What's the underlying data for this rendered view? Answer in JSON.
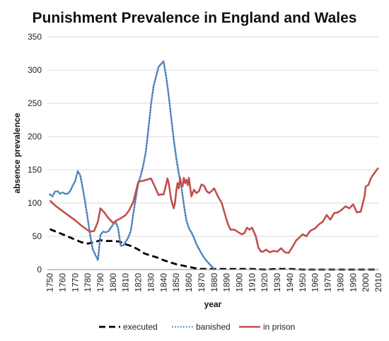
{
  "chart_data": {
    "type": "line",
    "title": "Punishment Prevalence in England and Wales",
    "xlabel": "year",
    "ylabel": "absence prevalence",
    "xlim": [
      1748,
      2010
    ],
    "ylim": [
      0,
      350
    ],
    "yticks": [
      0,
      50,
      100,
      150,
      200,
      250,
      300,
      350
    ],
    "xticks": [
      1750,
      1760,
      1770,
      1780,
      1790,
      1800,
      1810,
      1820,
      1830,
      1840,
      1850,
      1860,
      1870,
      1880,
      1890,
      1900,
      1910,
      1920,
      1930,
      1940,
      1950,
      1960,
      1970,
      1980,
      1990,
      2000,
      2010
    ],
    "grid": "horizontal",
    "legend_position": "bottom",
    "series": [
      {
        "name": "executed",
        "color": "#000000",
        "style": "dashed",
        "x": [
          1750,
          1752,
          1755,
          1760,
          1765,
          1770,
          1775,
          1780,
          1785,
          1790,
          1795,
          1800,
          1805,
          1810,
          1815,
          1820,
          1825,
          1830,
          1835,
          1840,
          1845,
          1850,
          1855,
          1860,
          1865,
          1870,
          1880,
          1890,
          1900,
          1910,
          1920,
          1930,
          1940,
          1950,
          1960,
          1970,
          1980,
          1990,
          2000,
          2010
        ],
        "values": [
          61,
          59,
          57,
          53,
          49,
          45,
          41,
          39,
          41,
          44,
          43,
          43,
          42,
          38,
          35,
          30,
          24,
          21,
          18,
          14,
          11,
          8,
          6,
          4,
          2,
          1,
          1,
          1,
          1,
          1,
          0,
          1,
          1,
          0,
          0,
          0,
          0,
          0,
          0,
          0
        ]
      },
      {
        "name": "banished",
        "color": "#4f81bd",
        "style": "dotted",
        "x": [
          1750,
          1752,
          1754,
          1756,
          1758,
          1760,
          1762,
          1764,
          1766,
          1768,
          1770,
          1772,
          1774,
          1776,
          1778,
          1780,
          1782,
          1784,
          1786,
          1788,
          1790,
          1792,
          1794,
          1796,
          1798,
          1800,
          1802,
          1804,
          1806,
          1808,
          1810,
          1812,
          1814,
          1816,
          1818,
          1820,
          1822,
          1824,
          1826,
          1828,
          1830,
          1832,
          1834,
          1836,
          1838,
          1840,
          1842,
          1844,
          1846,
          1848,
          1850,
          1852,
          1854,
          1856,
          1858,
          1860,
          1862,
          1864,
          1866,
          1868,
          1870,
          1872,
          1874,
          1876,
          1878,
          1880
        ],
        "values": [
          113,
          110,
          117,
          118,
          114,
          116,
          114,
          114,
          118,
          126,
          133,
          148,
          142,
          122,
          100,
          75,
          50,
          30,
          22,
          14,
          52,
          57,
          56,
          57,
          62,
          68,
          72,
          62,
          36,
          36,
          42,
          48,
          58,
          84,
          108,
          130,
          142,
          158,
          178,
          212,
          248,
          275,
          290,
          305,
          309,
          313,
          290,
          262,
          228,
          196,
          168,
          144,
          126,
          98,
          74,
          62,
          56,
          48,
          38,
          31,
          24,
          18,
          13,
          9,
          5,
          0
        ],
        "end_year": 1880
      },
      {
        "name": "in prison",
        "color": "#c0504d",
        "style": "solid",
        "x": [
          1750,
          1752,
          1755,
          1760,
          1765,
          1770,
          1775,
          1780,
          1782,
          1785,
          1788,
          1790,
          1793,
          1796,
          1800,
          1803,
          1806,
          1810,
          1813,
          1816,
          1820,
          1825,
          1830,
          1833,
          1836,
          1838,
          1840,
          1842,
          1843,
          1844,
          1846,
          1848,
          1849,
          1850,
          1851,
          1852,
          1853,
          1854,
          1855,
          1856,
          1857,
          1858,
          1859,
          1860,
          1862,
          1864,
          1866,
          1868,
          1870,
          1872,
          1874,
          1876,
          1878,
          1880,
          1883,
          1886,
          1889,
          1891,
          1893,
          1896,
          1900,
          1902,
          1904,
          1906,
          1908,
          1910,
          1913,
          1915,
          1917,
          1919,
          1921,
          1924,
          1927,
          1930,
          1933,
          1936,
          1939,
          1942,
          1945,
          1948,
          1950,
          1953,
          1956,
          1960,
          1963,
          1966,
          1969,
          1972,
          1975,
          1978,
          1981,
          1984,
          1987,
          1990,
          1993,
          1996,
          1999,
          2000,
          2002,
          2004,
          2006,
          2008,
          2010
        ],
        "values": [
          104,
          100,
          95,
          88,
          81,
          74,
          66,
          59,
          57,
          58,
          72,
          92,
          86,
          78,
          70,
          74,
          77,
          82,
          90,
          102,
          132,
          134,
          137,
          125,
          112,
          113,
          113,
          128,
          137,
          130,
          105,
          92,
          100,
          118,
          130,
          122,
          138,
          128,
          125,
          138,
          130,
          135,
          127,
          138,
          110,
          120,
          115,
          118,
          128,
          126,
          118,
          115,
          118,
          122,
          110,
          100,
          80,
          68,
          60,
          60,
          55,
          53,
          55,
          63,
          60,
          63,
          50,
          33,
          27,
          27,
          30,
          26,
          28,
          27,
          32,
          26,
          25,
          34,
          44,
          49,
          53,
          50,
          58,
          62,
          68,
          72,
          82,
          75,
          85,
          86,
          90,
          95,
          92,
          98,
          86,
          87,
          110,
          125,
          127,
          137,
          143,
          148,
          153
        ]
      }
    ]
  }
}
